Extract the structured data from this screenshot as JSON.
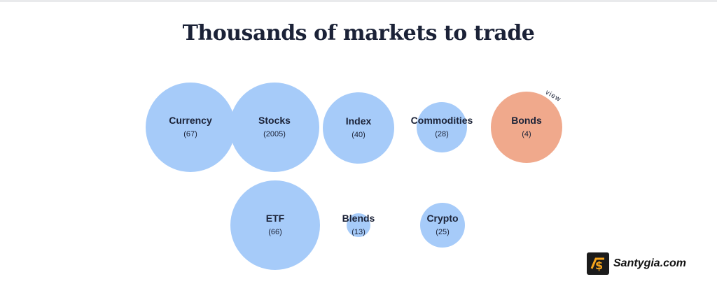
{
  "page": {
    "title": "Thousands of markets to trade"
  },
  "markets": [
    {
      "name": "Currency",
      "count": "(67)"
    },
    {
      "name": "Stocks",
      "count": "(2005)"
    },
    {
      "name": "Index",
      "count": "(40)"
    },
    {
      "name": "Commodities",
      "count": "(28)"
    },
    {
      "name": "Bonds",
      "count": "(4)"
    },
    {
      "name": "ETF",
      "count": "(66)"
    },
    {
      "name": "Blends",
      "count": "(13)"
    },
    {
      "name": "Crypto",
      "count": "(25)"
    }
  ],
  "hover_label": "view",
  "watermark": {
    "text": "Santygia.com"
  },
  "colors": {
    "bubble": "#a6cbf9",
    "bubble_active": "#f0a98c",
    "text": "#1b2237"
  }
}
